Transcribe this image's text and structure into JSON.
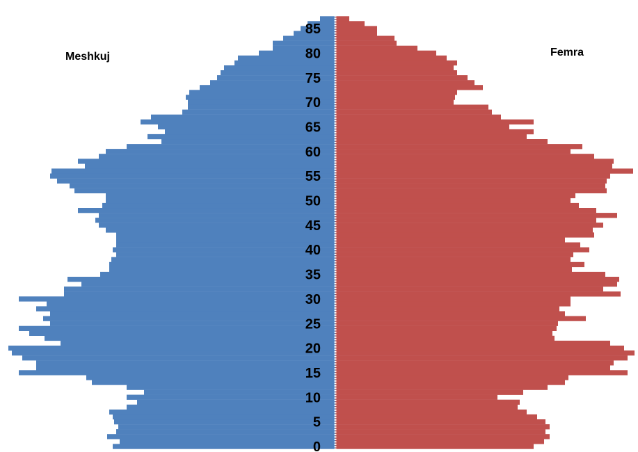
{
  "chart_data": {
    "type": "bar",
    "orientation": "horizontal-population-pyramid",
    "title": "",
    "xlabel": "",
    "ylabel": "",
    "grid": false,
    "ages": [
      0,
      1,
      2,
      3,
      4,
      5,
      6,
      7,
      8,
      9,
      10,
      11,
      12,
      13,
      14,
      15,
      16,
      17,
      18,
      19,
      20,
      21,
      22,
      23,
      24,
      25,
      26,
      27,
      28,
      29,
      30,
      31,
      32,
      33,
      34,
      35,
      36,
      37,
      38,
      39,
      40,
      41,
      42,
      43,
      44,
      45,
      46,
      47,
      48,
      49,
      50,
      51,
      52,
      53,
      54,
      55,
      56,
      57,
      58,
      59,
      60,
      61,
      62,
      63,
      64,
      65,
      66,
      67,
      68,
      69,
      70,
      71,
      72,
      73,
      74,
      75,
      76,
      77,
      78,
      79,
      80,
      81,
      82,
      83,
      84,
      85,
      86,
      87
    ],
    "y_ticks": [
      "0",
      "5",
      "10",
      "15",
      "20",
      "25",
      "30",
      "35",
      "40",
      "45",
      "50",
      "55",
      "60",
      "65",
      "70",
      "75",
      "80",
      "85"
    ],
    "xlim": [
      -475,
      475
    ],
    "series": [
      {
        "name": "Meshkuj",
        "color": "#4f81bd",
        "values": [
          320,
          310,
          328,
          315,
          312,
          318,
          320,
          325,
          300,
          285,
          300,
          275,
          300,
          350,
          358,
          455,
          430,
          430,
          450,
          465,
          470,
          395,
          418,
          440,
          455,
          410,
          420,
          410,
          430,
          415,
          455,
          390,
          390,
          365,
          385,
          338,
          325,
          325,
          322,
          315,
          320,
          315,
          315,
          315,
          330,
          340,
          345,
          340,
          370,
          335,
          330,
          330,
          375,
          382,
          400,
          410,
          408,
          360,
          370,
          340,
          330,
          300,
          250,
          270,
          245,
          255,
          280,
          265,
          220,
          212,
          212,
          215,
          210,
          195,
          180,
          170,
          165,
          160,
          145,
          140,
          110,
          90,
          90,
          75,
          60,
          50,
          40,
          22
        ]
      },
      {
        "name": "Femra",
        "color": "#c0504d",
        "values": [
          285,
          300,
          308,
          302,
          308,
          302,
          290,
          275,
          262,
          265,
          233,
          270,
          305,
          330,
          335,
          420,
          395,
          400,
          420,
          430,
          415,
          395,
          315,
          312,
          318,
          320,
          360,
          330,
          322,
          338,
          338,
          410,
          385,
          405,
          408,
          388,
          340,
          358,
          338,
          342,
          365,
          352,
          330,
          372,
          370,
          385,
          375,
          405,
          375,
          350,
          338,
          345,
          390,
          388,
          390,
          395,
          428,
          398,
          400,
          372,
          338,
          355,
          305,
          275,
          285,
          250,
          285,
          238,
          225,
          220,
          170,
          172,
          175,
          212,
          200,
          190,
          175,
          170,
          175,
          160,
          145,
          118,
          88,
          85,
          60,
          60,
          42,
          20
        ]
      }
    ],
    "legend": [
      {
        "label": "Meshkuj",
        "placement": "top-left"
      },
      {
        "label": "Femra",
        "placement": "top-right"
      }
    ]
  }
}
